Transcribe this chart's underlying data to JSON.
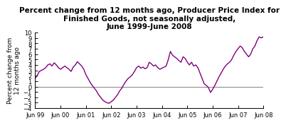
{
  "title_line1": "Percent change from 12 months ago, Producer Price Index for",
  "title_line2": "Finished Goods, not seasonally adjusted,",
  "title_line3": "June 1999-June 2008",
  "ylabel": "Percent change from\n12 months ago",
  "line_color": "#800080",
  "background_color": "#ffffff",
  "ylim": [
    -4,
    10
  ],
  "yticks": [
    -4,
    -3,
    -2,
    -1,
    0,
    1,
    2,
    3,
    4,
    5,
    6,
    7,
    8,
    9,
    10
  ],
  "x_tick_labels": [
    "Jun 99",
    "Jun 00",
    "Jun 01",
    "Jun 02",
    "Jun 03",
    "Jun 04",
    "Jun 05",
    "Jun 06",
    "Jun 07",
    "Jun 08"
  ],
  "values": [
    1.5,
    2.1,
    2.8,
    3.0,
    3.2,
    3.5,
    4.0,
    4.2,
    3.8,
    4.4,
    4.0,
    3.5,
    3.2,
    3.5,
    3.8,
    3.5,
    3.2,
    2.8,
    3.6,
    4.0,
    4.6,
    4.2,
    3.8,
    3.2,
    2.2,
    1.5,
    0.8,
    0.2,
    -0.3,
    -0.8,
    -1.5,
    -2.0,
    -2.5,
    -2.8,
    -3.0,
    -3.1,
    -2.8,
    -2.5,
    -2.0,
    -1.5,
    -0.8,
    -0.3,
    0.4,
    1.0,
    1.5,
    1.8,
    2.2,
    2.8,
    3.5,
    3.8,
    3.4,
    3.6,
    3.3,
    3.5,
    4.5,
    4.2,
    3.8,
    4.0,
    3.5,
    3.2,
    3.4,
    3.6,
    3.8,
    5.0,
    6.5,
    5.8,
    5.5,
    5.2,
    4.8,
    4.5,
    5.5,
    5.2,
    4.5,
    4.0,
    4.5,
    3.8,
    4.0,
    3.5,
    2.5,
    1.5,
    0.5,
    0.2,
    -0.2,
    -1.1,
    -0.5,
    0.2,
    1.0,
    1.8,
    2.5,
    3.2,
    3.8,
    4.2,
    4.5,
    5.0,
    5.8,
    6.5,
    7.0,
    7.5,
    7.2,
    6.5,
    6.0,
    5.5,
    6.0,
    7.0,
    7.5,
    8.5,
    9.2,
    9.0,
    9.2
  ]
}
